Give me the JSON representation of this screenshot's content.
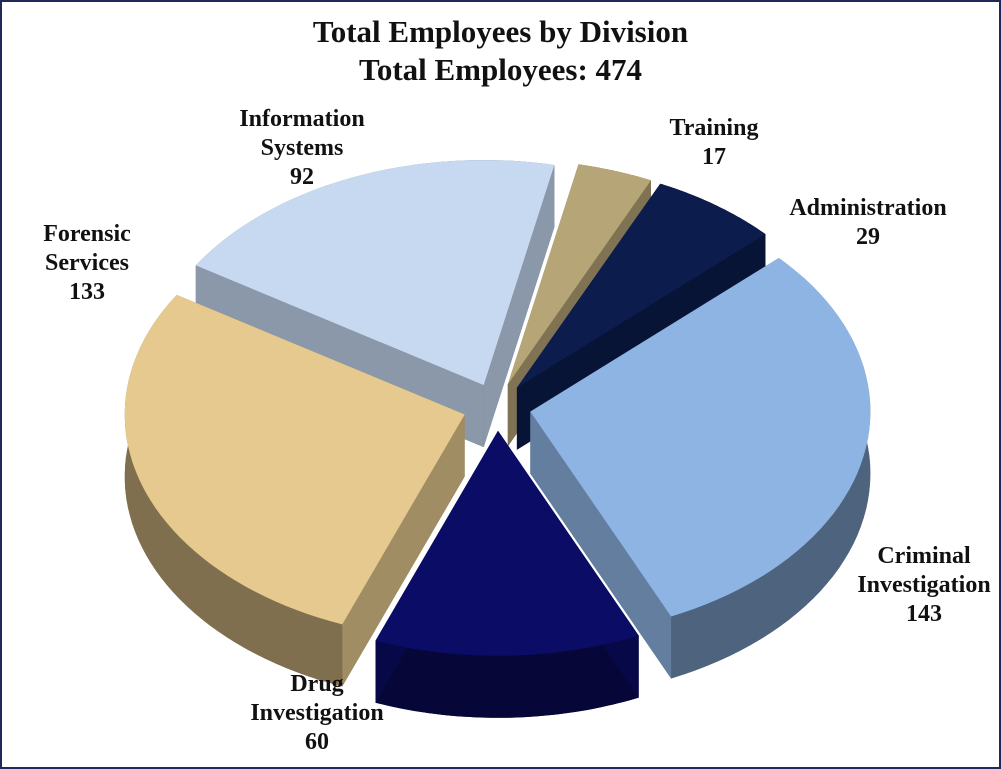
{
  "chart_data": {
    "type": "pie",
    "title": "Total Employees by Division",
    "subtitle": "Total Employees: 474",
    "categories": [
      "Training",
      "Administration",
      "Criminal Investigation",
      "Drug Investigation",
      "Forensic Services",
      "Information Systems"
    ],
    "values": [
      17,
      29,
      143,
      60,
      133,
      92
    ],
    "colors": [
      "#b5a577",
      "#0b1c4d",
      "#8eb4e3",
      "#0a0c66",
      "#e6c98e",
      "#c6d9f1"
    ]
  }
}
